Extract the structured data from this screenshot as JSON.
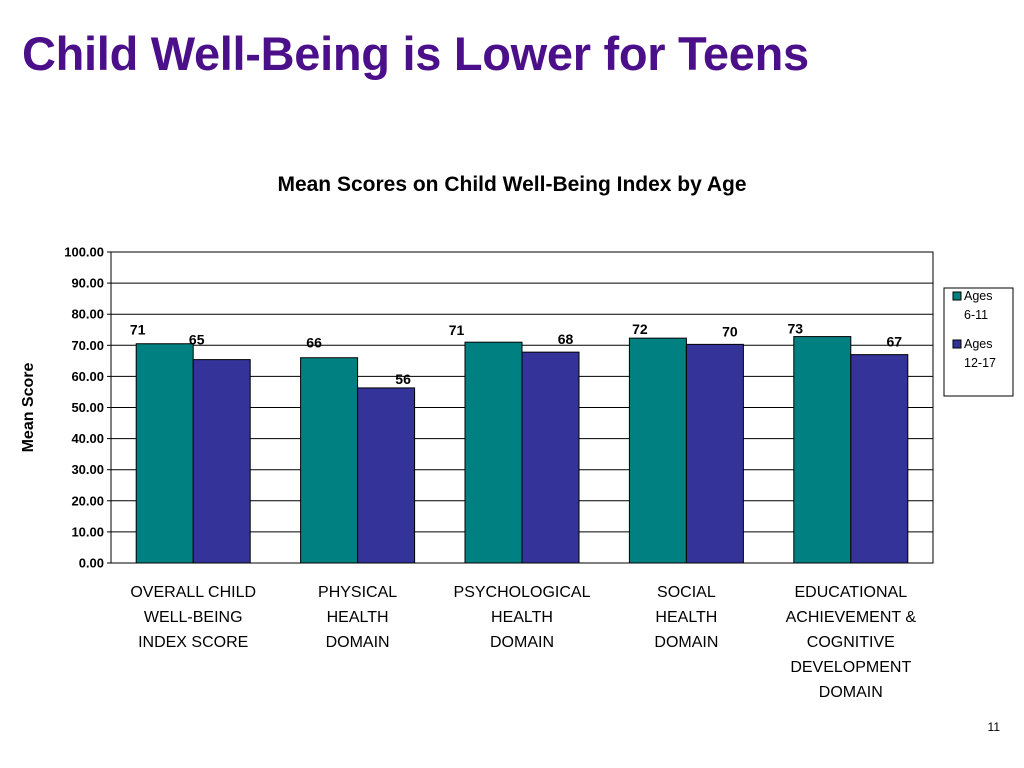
{
  "slide": {
    "title": "Child Well-Being is Lower for Teens",
    "page_number": "11"
  },
  "chart_data": {
    "type": "bar",
    "title": "Mean Scores on Child Well-Being Index by Age",
    "ylabel": "Mean Score",
    "xlabel": "",
    "ylim": [
      0,
      100
    ],
    "yticks": [
      "0.00",
      "10.00",
      "20.00",
      "30.00",
      "40.00",
      "50.00",
      "60.00",
      "70.00",
      "80.00",
      "90.00",
      "100.00"
    ],
    "grid": true,
    "legend_position": "right",
    "categories": [
      [
        "OVERALL CHILD",
        "WELL-BEING",
        "INDEX SCORE"
      ],
      [
        "PHYSICAL",
        "HEALTH",
        "DOMAIN"
      ],
      [
        "PSYCHOLOGICAL",
        "HEALTH",
        "DOMAIN"
      ],
      [
        "SOCIAL",
        "HEALTH",
        "DOMAIN"
      ],
      [
        "EDUCATIONAL",
        "ACHIEVEMENT &",
        "COGNITIVE",
        "DEVELOPMENT",
        "DOMAIN"
      ]
    ],
    "series": [
      {
        "name": [
          "Ages",
          "6-11"
        ],
        "color": "#008080",
        "values": [
          70.5,
          66,
          71,
          72.3,
          72.8
        ],
        "labels": [
          "71",
          "66",
          "71",
          "72",
          "73"
        ]
      },
      {
        "name": [
          "Ages",
          "12-17"
        ],
        "color": "#333399",
        "values": [
          65.4,
          56.3,
          67.8,
          70.3,
          67
        ],
        "labels": [
          "65",
          "56",
          "68",
          "70",
          "67"
        ]
      }
    ]
  }
}
